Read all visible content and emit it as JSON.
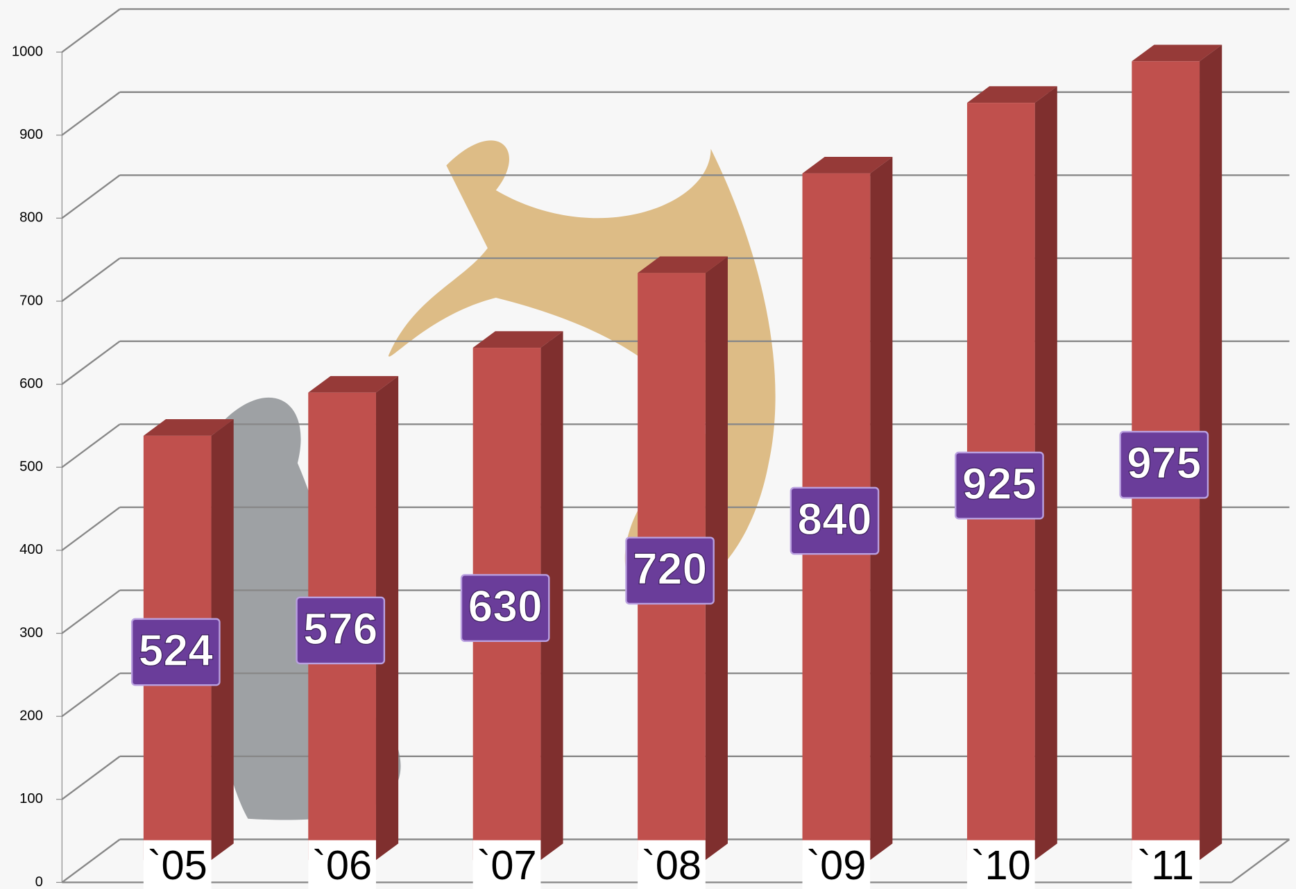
{
  "chart_data": {
    "type": "bar3d",
    "categories": [
      "`05",
      "`06",
      "`07",
      "`08",
      "`09",
      "`10",
      "`11"
    ],
    "values": [
      524,
      576,
      630,
      720,
      840,
      925,
      975
    ],
    "color": "#c0504d",
    "ylim": [
      0,
      1000
    ],
    "yticks": [
      0,
      100,
      200,
      300,
      400,
      500,
      600,
      700,
      800,
      900,
      1000
    ],
    "grid": true
  }
}
